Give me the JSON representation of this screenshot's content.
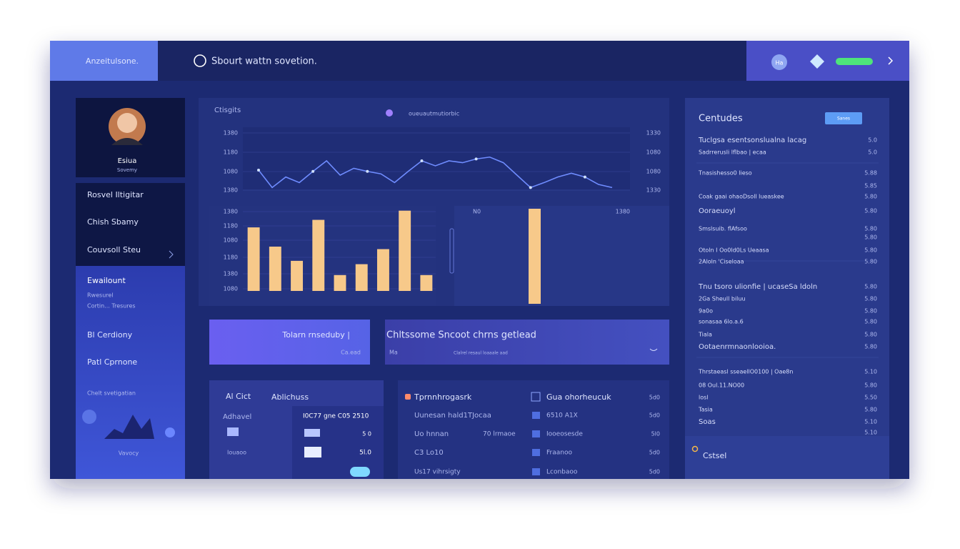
{
  "header": {
    "brand": "Anzeitulsone.",
    "search": "Sbourt wattn sovetion.",
    "badge": "Ha"
  },
  "sidebar": {
    "profile_name": "Esiua",
    "profile_role": "Sovemy",
    "menu": [
      "Rosvel Iltigitar",
      "Chish Sbamy",
      "Couvsoll Steu"
    ],
    "section_title": "Ewailount",
    "section_lines": [
      "Rwesurel",
      "Cortin...  Tresures"
    ],
    "items": [
      "Bl  Cerdiony",
      "Patl Cprnone",
      "Chelt svetigatian"
    ],
    "footer": "Vavocy"
  },
  "main_chart": {
    "title": "Ctisgits",
    "subtitle": "oueuautmutiorbic",
    "line_left_labels": [
      "1380",
      "1180",
      "1080",
      "1380"
    ],
    "line_right_labels": [
      "1330",
      "1080",
      "1080",
      "1330"
    ],
    "line": {
      "type": "line",
      "values": [
        31,
        3,
        20,
        11,
        29,
        46,
        23,
        34,
        29,
        25,
        11,
        29,
        46,
        38,
        46,
        43,
        49,
        52,
        43,
        23,
        3,
        11,
        20,
        26,
        20,
        8,
        3
      ],
      "ylim": [
        0,
        100
      ],
      "color": "#6f8cff"
    },
    "bar_labels": [
      "1380",
      "1180",
      "1080",
      "1180",
      "1380",
      "1080"
    ],
    "bars": {
      "type": "bar",
      "values": [
        76,
        53,
        36,
        85,
        19,
        32,
        50,
        96,
        19
      ],
      "ylim": [
        0,
        100
      ],
      "color": "#f7c98a"
    },
    "side_label_left": "N0",
    "side_label_right": "1380",
    "single_bar": {
      "type": "bar",
      "values": [
        100
      ],
      "ylim": [
        0,
        100
      ],
      "color": "#f7c98a"
    }
  },
  "banners": [
    {
      "title": "Tolarn rnseduby |",
      "sub": "Ca.ead"
    },
    {
      "title": "Chltssome Sncoot chrns getlead",
      "sub": "Ma",
      "sub2": "Clalrel resaul loaaale aad"
    }
  ],
  "card_left": {
    "title": "Al Cict",
    "title2": "Ablichuss",
    "rows": [
      {
        "label": "Adhavel",
        "value": "I0C77 gne C05 2510"
      },
      {
        "label": "Iouaoo",
        "value": "5l.0"
      }
    ],
    "mid_value": "5 0"
  },
  "card_mid": {
    "title": "Tprnnhrogasrk",
    "rows": [
      "Uunesan hald1TJocaa",
      "Uo hnnan",
      "C3 Lo10",
      "Us17 vihrsigty"
    ],
    "mid_note": "70 lrmaoe",
    "right_title": "Gua ohorheucuk",
    "right_rows": [
      "6510 A1X",
      "Iooeosesde",
      "Fraanoo",
      "Lconbaoo"
    ],
    "values": [
      "5d0",
      "5d0",
      "5l0",
      "5d0",
      "5d0"
    ]
  },
  "right_panel": {
    "title": "Centudes",
    "button": "Sanes",
    "footer": "Cstsel",
    "rows": [
      {
        "label": "Tuclgsa esentsonslualna lacag",
        "value": "5.0"
      },
      {
        "label": "Sadrrerusli lflbao | ecaa",
        "value": "5.0"
      },
      {
        "label": "Tnasishesso0 lieso",
        "value": "5.88"
      },
      {
        "value": "5.85"
      },
      {
        "label": "Coak gaai ohaoDsoll lueaskee",
        "value": "5.80"
      },
      {
        "label": "Ooraeuoyl",
        "value": "5.80"
      },
      {
        "label": "Smslsuib. flAfsoo",
        "value": "5.80"
      },
      {
        "value": "5.80"
      },
      {
        "label": "Otoln I Oo0ld0Ls Ueaasa",
        "value": "5.80"
      },
      {
        "label": "2Aloln 'Ciseloaa",
        "value": "5.80"
      },
      {
        "label": "Tnu tsoro ulionfie | ucaseSa ldoln",
        "value": "5.80"
      },
      {
        "label": "2Ga Sheull biluu",
        "value": "5.80"
      },
      {
        "label": "9a0o",
        "value": "5.80"
      },
      {
        "label": "sonasaa 6lo.a.6",
        "value": "5.80"
      },
      {
        "label": "Tiala",
        "value": "5.80"
      },
      {
        "label": "Ootaenrmnaonlooioa.",
        "value": "5.80"
      },
      {
        "label": "Thrstaeasl sseaellO0100 | Oae8n",
        "value": "5.10"
      },
      {
        "label": "08 Oul.11.NO00",
        "value": "5.80"
      },
      {
        "label": "losl",
        "value": "5.50"
      },
      {
        "label": "Tasia",
        "value": "5.80"
      },
      {
        "label": "Soas",
        "value": "5.10"
      },
      {
        "value": "5.10"
      }
    ]
  }
}
